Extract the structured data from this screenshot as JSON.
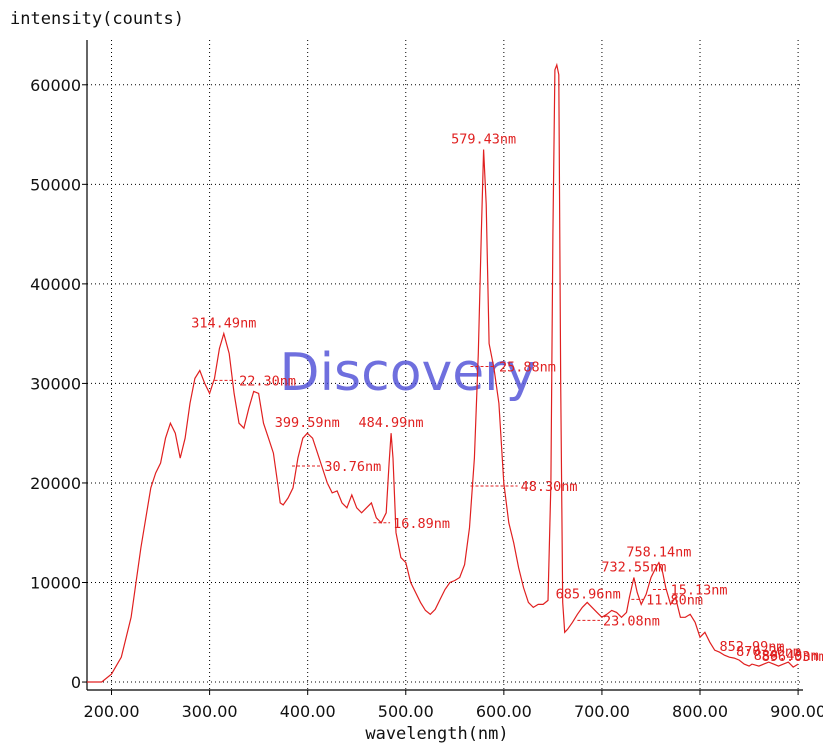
{
  "chart_data": {
    "type": "line",
    "xlabel": "wavelength(nm)",
    "ylabel": "intensity(counts)",
    "xlim": [
      175,
      905
    ],
    "ylim": [
      -800,
      64500
    ],
    "grid": true,
    "line_color": "#e02020",
    "grid_color": "#000000",
    "watermark": "Discovery",
    "x_ticks": [
      200,
      300,
      400,
      500,
      600,
      700,
      800,
      900
    ],
    "x_tick_labels": [
      "200.00",
      "300.00",
      "400.00",
      "500.00",
      "600.00",
      "700.00",
      "800.00",
      "900.00"
    ],
    "y_ticks": [
      0,
      10000,
      20000,
      30000,
      40000,
      50000,
      60000
    ],
    "y_tick_labels": [
      "0",
      "10000",
      "20000",
      "30000",
      "40000",
      "50000",
      "60000"
    ],
    "series": [
      {
        "x": [
          175,
          190,
          200,
          210,
          220,
          230,
          240,
          245,
          250,
          255,
          260,
          265,
          270,
          275,
          280,
          285,
          290,
          295,
          300,
          305,
          310,
          314.5,
          320,
          325,
          330,
          335,
          340,
          345,
          350,
          355,
          360,
          365,
          370,
          372,
          375,
          380,
          385,
          390,
          395,
          399.6,
          405,
          410,
          415,
          420,
          425,
          430,
          435,
          440,
          445,
          450,
          455,
          460,
          465,
          470,
          475,
          480,
          483,
          485,
          487,
          490,
          495,
          500,
          505,
          510,
          515,
          520,
          525,
          530,
          535,
          540,
          545,
          550,
          555,
          560,
          565,
          570,
          574,
          577,
          579.4,
          582,
          585,
          590,
          595,
          600,
          605,
          610,
          615,
          620,
          625,
          630,
          635,
          640,
          645,
          648,
          650,
          652,
          654,
          656,
          658,
          660,
          662,
          665,
          670,
          675,
          680,
          685,
          690,
          695,
          700,
          705,
          710,
          715,
          720,
          725,
          728,
          732.6,
          736,
          740,
          745,
          750,
          755,
          758.1,
          762,
          765,
          770,
          775,
          780,
          785,
          790,
          795,
          800,
          805,
          810,
          815,
          820,
          825,
          830,
          835,
          840,
          845,
          850,
          853,
          860,
          865,
          870,
          875,
          880,
          885,
          890,
          895,
          900
        ],
        "y": [
          0,
          0,
          800,
          2500,
          6500,
          13500,
          19500,
          21000,
          22000,
          24500,
          26000,
          25000,
          22500,
          24500,
          28000,
          30500,
          31300,
          30000,
          29000,
          30500,
          33500,
          35000,
          33000,
          29000,
          26000,
          25500,
          27500,
          29200,
          29000,
          26000,
          24500,
          23000,
          19500,
          18000,
          17800,
          18500,
          19500,
          22500,
          24500,
          25000,
          24500,
          23000,
          21500,
          20000,
          19000,
          19200,
          18000,
          17500,
          18800,
          17500,
          17000,
          17500,
          18000,
          16500,
          16000,
          17000,
          22000,
          25000,
          22500,
          15000,
          12500,
          12000,
          10000,
          9000,
          8000,
          7200,
          6800,
          7300,
          8300,
          9300,
          10000,
          10200,
          10500,
          11800,
          15500,
          22500,
          33000,
          45000,
          53500,
          48000,
          34000,
          31500,
          28000,
          20000,
          16000,
          14000,
          11500,
          9500,
          8000,
          7500,
          7800,
          7800,
          8200,
          20000,
          45000,
          61500,
          62000,
          61000,
          30000,
          8000,
          5000,
          5300,
          6000,
          6800,
          7500,
          8000,
          7500,
          7000,
          6500,
          6800,
          7200,
          7000,
          6500,
          7000,
          8500,
          10500,
          9000,
          7800,
          8800,
          10500,
          11500,
          12000,
          11000,
          9500,
          7800,
          8500,
          6500,
          6500,
          6800,
          6000,
          4500,
          5000,
          4000,
          3200,
          3000,
          2700,
          2500,
          2400,
          2200,
          1800,
          1600,
          1800,
          1600,
          1800,
          2000,
          1800,
          1600,
          1800,
          2000,
          1500,
          1800
        ]
      }
    ],
    "annotations": [
      {
        "text": "314.49nm",
        "x": 314.5,
        "y": 35000
      },
      {
        "text": "22.30nm",
        "x": 316,
        "y": 30300,
        "fwhm": [
          305,
          327
        ]
      },
      {
        "text": "399.59nm",
        "x": 399.6,
        "y": 25000
      },
      {
        "text": "30.76nm",
        "x": 404,
        "y": 21700,
        "fwhm": [
          384,
          414
        ]
      },
      {
        "text": "484.99nm",
        "x": 485,
        "y": 25000
      },
      {
        "text": "16.89nm",
        "x": 475,
        "y": 16000,
        "fwhm": [
          467,
          484
        ]
      },
      {
        "text": "579.43nm",
        "x": 579.4,
        "y": 53500
      },
      {
        "text": "25.88nm",
        "x": 590,
        "y": 31700,
        "fwhm": [
          566,
          592
        ]
      },
      {
        "text": "48.30nm",
        "x": 590,
        "y": 19700,
        "fwhm": [
          566,
          614
        ]
      },
      {
        "text": "685.96nm",
        "x": 686,
        "y": 7800
      },
      {
        "text": "23.08nm",
        "x": 690,
        "y": 6200,
        "fwhm": [
          675,
          698
        ]
      },
      {
        "text": "732.55nm",
        "x": 732.6,
        "y": 10500
      },
      {
        "text": "11.80nm",
        "x": 742,
        "y": 8300,
        "fwhm": [
          730,
          742
        ]
      },
      {
        "text": "758.14nm",
        "x": 758.1,
        "y": 12000
      },
      {
        "text": "15.13nm",
        "x": 765,
        "y": 9300,
        "fwhm": [
          752,
          767
        ]
      },
      {
        "text": "852.99nm",
        "x": 853,
        "y": 2500
      },
      {
        "text": "870.26nm",
        "x": 870,
        "y": 2000
      },
      {
        "text": "888.43nm",
        "x": 888,
        "y": 1600
      },
      {
        "text": "896.03nm",
        "x": 896,
        "y": 1500
      }
    ]
  }
}
